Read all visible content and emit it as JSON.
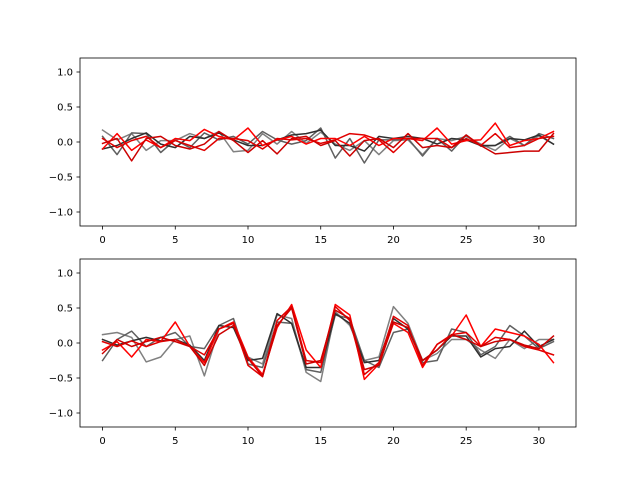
{
  "chart_data": [
    {
      "type": "line",
      "title": "",
      "xlabel": "",
      "ylabel": "",
      "xlim": [
        -1.55,
        32.55
      ],
      "ylim": [
        -1.2,
        1.2
      ],
      "xticks": [
        0,
        5,
        10,
        15,
        20,
        25,
        30
      ],
      "yticks": [
        -1.0,
        -0.5,
        0.0,
        0.5,
        1.0
      ],
      "xtick_labels": [
        "0",
        "5",
        "10",
        "15",
        "20",
        "25",
        "30"
      ],
      "ytick_labels": [
        "−1.0",
        "−0.5",
        "0.0",
        "0.5",
        "1.0"
      ],
      "grid": false,
      "x": [
        0,
        1,
        2,
        3,
        4,
        5,
        6,
        7,
        8,
        9,
        10,
        11,
        12,
        13,
        14,
        15,
        16,
        17,
        18,
        19,
        20,
        21,
        22,
        23,
        24,
        25,
        26,
        27,
        28,
        29,
        30,
        31
      ],
      "series": [
        {
          "color": "#808080",
          "values": [
            0.17,
            0.03,
            0.12,
            -0.12,
            0.02,
            0.02,
            0.12,
            0.05,
            0.15,
            -0.14,
            -0.12,
            0.12,
            -0.03,
            0.15,
            -0.02,
            0.14,
            -0.03,
            -0.12,
            0.02,
            -0.18,
            0.02,
            0.03,
            -0.18,
            0.05,
            0.02,
            0.08,
            -0.03,
            -0.12,
            0.05,
            -0.05,
            0.09,
            -0.03
          ]
        },
        {
          "color": "#606060",
          "values": [
            0.08,
            -0.18,
            0.13,
            0.12,
            -0.15,
            0.03,
            -0.08,
            0.13,
            0.03,
            0.08,
            -0.03,
            0.15,
            0.03,
            -0.03,
            0.02,
            0.2,
            -0.23,
            0.05,
            -0.3,
            0.03,
            0.03,
            0.05,
            -0.2,
            0.05,
            -0.13,
            0.1,
            -0.06,
            -0.05,
            0.08,
            -0.05,
            0.12,
            0.05
          ]
        },
        {
          "color": "#303030",
          "values": [
            -0.1,
            -0.05,
            0.05,
            0.13,
            -0.03,
            -0.08,
            0.08,
            0.05,
            0.13,
            0.03,
            -0.05,
            -0.05,
            0.03,
            0.1,
            0.12,
            0.17,
            -0.05,
            -0.05,
            -0.13,
            0.08,
            0.05,
            0.08,
            0.05,
            -0.03,
            0.05,
            0.03,
            -0.05,
            -0.05,
            0.05,
            0.03,
            0.1,
            -0.03
          ]
        },
        {
          "color": "#ff0000",
          "values": [
            -0.1,
            0.12,
            -0.12,
            0.03,
            -0.08,
            0.05,
            0.02,
            0.18,
            0.08,
            0.03,
            0.2,
            -0.05,
            0.03,
            0.08,
            -0.03,
            0.05,
            0.05,
            -0.05,
            0.08,
            -0.05,
            0.05,
            0.05,
            0.02,
            0.2,
            -0.03,
            0.02,
            0.03,
            0.27,
            -0.05,
            0.02,
            0.05,
            0.15
          ]
        },
        {
          "color": "#e00000",
          "values": [
            0.05,
            -0.08,
            0.02,
            0.08,
            -0.08,
            0.02,
            -0.05,
            -0.12,
            0.05,
            0.05,
            0.02,
            -0.1,
            0.05,
            0.03,
            0.05,
            -0.02,
            0.03,
            0.12,
            0.1,
            0.03,
            -0.15,
            0.05,
            0.05,
            0.05,
            -0.08,
            0.05,
            -0.05,
            0.12,
            -0.08,
            -0.05,
            0.05,
            0.08
          ]
        },
        {
          "color": "#cc0000",
          "values": [
            -0.02,
            0.05,
            -0.27,
            0.05,
            0.08,
            -0.05,
            -0.1,
            -0.03,
            0.15,
            0.02,
            -0.15,
            0.02,
            -0.17,
            0.05,
            0.08,
            -0.05,
            0.02,
            -0.2,
            0.02,
            0.05,
            -0.08,
            0.12,
            -0.08,
            -0.05,
            -0.08,
            0.1,
            -0.05,
            -0.17,
            -0.15,
            -0.13,
            -0.13,
            0.12
          ]
        }
      ]
    },
    {
      "type": "line",
      "title": "",
      "xlabel": "",
      "ylabel": "",
      "xlim": [
        -1.55,
        32.55
      ],
      "ylim": [
        -1.2,
        1.2
      ],
      "xticks": [
        0,
        5,
        10,
        15,
        20,
        25,
        30
      ],
      "yticks": [
        -1.0,
        -0.5,
        0.0,
        0.5,
        1.0
      ],
      "xtick_labels": [
        "0",
        "5",
        "10",
        "15",
        "20",
        "25",
        "30"
      ],
      "ytick_labels": [
        "−1.0",
        "−0.5",
        "0.0",
        "0.5",
        "1.0"
      ],
      "grid": false,
      "x": [
        0,
        1,
        2,
        3,
        4,
        5,
        6,
        7,
        8,
        9,
        10,
        11,
        12,
        13,
        14,
        15,
        16,
        17,
        18,
        19,
        20,
        21,
        22,
        23,
        24,
        25,
        26,
        27,
        28,
        29,
        30,
        31
      ],
      "series": [
        {
          "color": "#808080",
          "values": [
            0.12,
            0.15,
            0.08,
            -0.27,
            -0.2,
            0.05,
            0.1,
            -0.47,
            0.2,
            0.3,
            -0.2,
            -0.3,
            0.4,
            0.35,
            -0.42,
            -0.55,
            0.45,
            0.25,
            -0.25,
            -0.2,
            0.52,
            0.28,
            -0.25,
            -0.15,
            0.05,
            0.05,
            -0.1,
            -0.22,
            0.05,
            -0.08,
            0.05,
            0.05
          ]
        },
        {
          "color": "#606060",
          "values": [
            -0.25,
            0.05,
            0.17,
            -0.05,
            0.08,
            0.15,
            -0.05,
            -0.08,
            0.25,
            0.35,
            -0.3,
            -0.35,
            0.3,
            0.28,
            -0.38,
            -0.42,
            0.4,
            0.35,
            -0.25,
            -0.35,
            0.15,
            0.2,
            -0.28,
            -0.25,
            0.2,
            0.15,
            -0.17,
            -0.05,
            0.25,
            0.1,
            -0.08,
            0.02
          ]
        },
        {
          "color": "#303030",
          "values": [
            0.05,
            -0.03,
            0.03,
            0.08,
            0.03,
            0.05,
            -0.03,
            -0.25,
            0.25,
            0.22,
            -0.25,
            -0.22,
            0.42,
            0.28,
            -0.35,
            -0.35,
            0.42,
            0.28,
            -0.28,
            -0.25,
            0.35,
            0.2,
            -0.25,
            -0.1,
            0.1,
            0.1,
            -0.2,
            -0.08,
            -0.05,
            0.17,
            -0.05,
            0.05
          ]
        },
        {
          "color": "#ff0000",
          "values": [
            -0.1,
            0.02,
            -0.2,
            0.05,
            0.02,
            0.3,
            -0.05,
            -0.28,
            0.2,
            0.3,
            -0.2,
            -0.45,
            0.22,
            0.55,
            -0.1,
            -0.35,
            0.55,
            0.4,
            -0.52,
            -0.3,
            0.28,
            0.15,
            -0.35,
            -0.02,
            0.1,
            0.4,
            -0.05,
            0.2,
            0.15,
            0.1,
            -0.02,
            -0.28
          ]
        },
        {
          "color": "#e00000",
          "values": [
            0.02,
            -0.05,
            0.03,
            -0.05,
            0.02,
            0.05,
            -0.05,
            -0.17,
            0.2,
            0.28,
            -0.32,
            -0.48,
            0.32,
            0.52,
            -0.25,
            -0.28,
            0.52,
            0.32,
            -0.45,
            -0.28,
            0.38,
            0.25,
            -0.32,
            -0.02,
            0.12,
            0.15,
            -0.05,
            0.08,
            0.05,
            -0.05,
            -0.1,
            -0.17
          ]
        },
        {
          "color": "#cc0000",
          "values": [
            -0.15,
            0.05,
            -0.05,
            0.02,
            0.08,
            0.02,
            -0.05,
            -0.32,
            0.12,
            0.25,
            -0.22,
            -0.48,
            0.25,
            0.5,
            -0.3,
            -0.25,
            0.47,
            0.35,
            -0.38,
            -0.32,
            0.3,
            0.22,
            -0.25,
            -0.1,
            0.12,
            0.05,
            -0.05,
            0.02,
            0.05,
            -0.03,
            -0.08,
            0.1
          ]
        }
      ]
    }
  ]
}
